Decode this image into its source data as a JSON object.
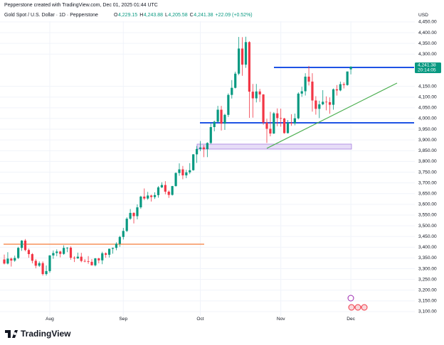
{
  "header": {
    "attribution": "Pepperstone created with TradingView.com, Dec 01, 2025 01:44 UTC",
    "symbol": "Gold Spot / U.S. Dollar · 1D · Pepperstone",
    "ohlc": [
      {
        "key": "O",
        "value": "4,229.15"
      },
      {
        "key": "H",
        "value": "4,243.88"
      },
      {
        "key": "L",
        "value": "4,205.58"
      },
      {
        "key": "C",
        "value": "4,241.38"
      }
    ],
    "change": "+22.09 (+0.52%)",
    "currency": "USD"
  },
  "chart_data": {
    "type": "candlestick",
    "categories": [
      null,
      null,
      null,
      null,
      null,
      null,
      null,
      null,
      null,
      null,
      null,
      null,
      null,
      "Aug",
      null,
      null,
      null,
      null,
      null,
      null,
      null,
      null,
      null,
      null,
      null,
      null,
      null,
      null,
      null,
      null,
      null,
      null,
      null,
      null,
      "Sep",
      null,
      null,
      null,
      null,
      null,
      null,
      null,
      null,
      null,
      null,
      null,
      null,
      null,
      null,
      null,
      null,
      null,
      null,
      null,
      null,
      null,
      "Oct",
      null,
      null,
      null,
      null,
      null,
      null,
      null,
      null,
      null,
      null,
      null,
      null,
      null,
      null,
      null,
      null,
      null,
      null,
      null,
      null,
      null,
      null,
      "Nov",
      null,
      null,
      null,
      null,
      null,
      null,
      null,
      null,
      null,
      null,
      null,
      null,
      null,
      null,
      null,
      null,
      null,
      null,
      null,
      "Dec"
    ],
    "open": [
      3343,
      3324,
      3347,
      3338,
      3350,
      3397,
      3431,
      3387,
      3368,
      3337,
      3314,
      3326,
      3275,
      3289,
      3362,
      3373,
      3380,
      3369,
      3397,
      3398,
      3351,
      3348,
      3356,
      3336,
      3335,
      3332,
      3316,
      3348,
      3339,
      3372,
      3365,
      3393,
      3397,
      3416,
      3448,
      3476,
      3533,
      3560,
      3545,
      3586,
      3636,
      3627,
      3641,
      3634,
      3643,
      3679,
      3690,
      3659,
      3644,
      3685,
      3746,
      3763,
      3735,
      3749,
      3759,
      3833,
      3858,
      3865,
      3857,
      3886,
      3960,
      3985,
      4041,
      3976,
      4017,
      4110,
      4143,
      4209,
      4326,
      4251,
      4356,
      4125,
      4094,
      4126,
      4112,
      3981,
      3952,
      3930,
      4024,
      4002,
      4000,
      3932,
      3980,
      3977,
      4001,
      4116,
      4127,
      4195,
      4172,
      4084,
      4045,
      4066,
      4078,
      4076,
      4064,
      4136,
      4131,
      4160,
      4156,
      4229.15
    ],
    "high": [
      3366,
      3377,
      3352,
      3361,
      3402,
      3433,
      3438,
      3394,
      3373,
      3345,
      3334,
      3334,
      3315,
      3363,
      3385,
      3390,
      3384,
      3409,
      3400,
      3404,
      3358,
      3375,
      3374,
      3345,
      3359,
      3345,
      3350,
      3351,
      3379,
      3376,
      3393,
      3398,
      3423,
      3453,
      3490,
      3540,
      3578,
      3563,
      3600,
      3640,
      3674,
      3658,
      3645,
      3656,
      3685,
      3703,
      3708,
      3665,
      3686,
      3749,
      3791,
      3779,
      3761,
      3792,
      3834,
      3872,
      3895,
      3876,
      3889,
      3977,
      3990,
      4059,
      4059,
      4022,
      4117,
      4179,
      4218,
      4380,
      4379,
      4381,
      4360,
      4161,
      4161,
      4138,
      4114,
      3999,
      4031,
      4030,
      4047,
      4046,
      4003,
      3993,
      4020,
      4023,
      4122,
      4148,
      4211,
      4245,
      4211,
      4104,
      4083,
      4132,
      4103,
      4098,
      4140,
      4156,
      4172,
      4169,
      4219,
      4243.88
    ],
    "low": [
      3320,
      3320,
      3310,
      3332,
      3345,
      3383,
      3381,
      3351,
      3325,
      3302,
      3308,
      3268,
      3268,
      3281,
      3346,
      3358,
      3353,
      3365,
      3377,
      3342,
      3331,
      3346,
      3330,
      3330,
      3323,
      3315,
      3311,
      3325,
      3321,
      3351,
      3352,
      3370,
      3386,
      3402,
      3436,
      3471,
      3528,
      3511,
      3530,
      3579,
      3620,
      3621,
      3613,
      3625,
      3631,
      3676,
      3647,
      3630,
      3641,
      3683,
      3733,
      3717,
      3722,
      3741,
      3757,
      3793,
      3848,
      3820,
      3820,
      3882,
      3940,
      3983,
      3944,
      3947,
      4007,
      4093,
      4140,
      4202,
      4199,
      4236,
      4003,
      4004,
      4075,
      4077,
      3971,
      3886,
      3917,
      3928,
      3964,
      3962,
      3929,
      3930,
      3966,
      3968,
      3996,
      4101,
      4107,
      4154,
      4032,
      4018,
      4002,
      4062,
      4038,
      4022,
      4041,
      4107,
      4127,
      4140,
      4153,
      4205.58
    ],
    "close": [
      3324,
      3347,
      3338,
      3350,
      3397,
      3431,
      3387,
      3368,
      3337,
      3314,
      3326,
      3275,
      3289,
      3362,
      3373,
      3380,
      3369,
      3397,
      3398,
      3351,
      3348,
      3356,
      3336,
      3335,
      3332,
      3316,
      3348,
      3339,
      3372,
      3365,
      3393,
      3397,
      3416,
      3448,
      3476,
      3533,
      3560,
      3545,
      3586,
      3636,
      3627,
      3641,
      3634,
      3643,
      3679,
      3690,
      3659,
      3644,
      3685,
      3746,
      3763,
      3735,
      3749,
      3759,
      3833,
      3858,
      3865,
      3857,
      3886,
      3960,
      3985,
      4041,
      3976,
      4017,
      4110,
      4143,
      4209,
      4326,
      4251,
      4356,
      4125,
      4094,
      4126,
      4112,
      3981,
      3952,
      3930,
      4024,
      4002,
      4000,
      3932,
      3980,
      3977,
      4001,
      4116,
      4127,
      4195,
      4172,
      4084,
      4045,
      4066,
      4078,
      4076,
      4064,
      4136,
      4131,
      4160,
      4156,
      4219,
      4241.38
    ],
    "up_color": "#089981",
    "down_color": "#f23645",
    "ylim": [
      3047,
      4453
    ],
    "yticks": [
      {
        "value": 3100,
        "label": "3,100.00"
      },
      {
        "value": 3150,
        "label": "3,150.00"
      },
      {
        "value": 3200,
        "label": "3,200.00"
      },
      {
        "value": 3250,
        "label": "3,250.00"
      },
      {
        "value": 3300,
        "label": "3,300.00"
      },
      {
        "value": 3350,
        "label": "3,350.00"
      },
      {
        "value": 3400,
        "label": "3,400.00"
      },
      {
        "value": 3450,
        "label": "3,450.00"
      },
      {
        "value": 3500,
        "label": "3,500.00"
      },
      {
        "value": 3550,
        "label": "3,550.00"
      },
      {
        "value": 3600,
        "label": "3,600.00"
      },
      {
        "value": 3650,
        "label": "3,650.00"
      },
      {
        "value": 3700,
        "label": "3,700.00"
      },
      {
        "value": 3750,
        "label": "3,750.00"
      },
      {
        "value": 3800,
        "label": "3,800.00"
      },
      {
        "value": 3850,
        "label": "3,850.00"
      },
      {
        "value": 3900,
        "label": "3,900.00"
      },
      {
        "value": 3950,
        "label": "3,950.00"
      },
      {
        "value": 4000,
        "label": "4,000.00"
      },
      {
        "value": 4050,
        "label": "4,050.00"
      },
      {
        "value": 4100,
        "label": "4,100.00"
      },
      {
        "value": 4150,
        "label": "4,150.00"
      },
      {
        "value": 4300,
        "label": "4,300.00"
      },
      {
        "value": 4350,
        "label": "4,350.00"
      },
      {
        "value": 4400,
        "label": "4,400.00"
      },
      {
        "value": 4450,
        "label": "4,450.00"
      }
    ],
    "grid": true,
    "last_price_label": "4,241.38",
    "countdown": "20:14:05"
  },
  "logo_text": "TradingView"
}
